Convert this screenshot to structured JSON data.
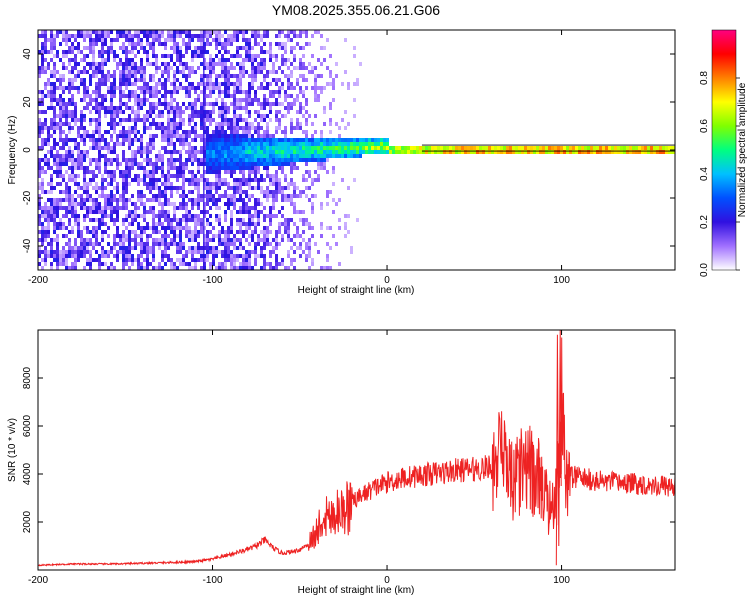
{
  "figure": {
    "title": "YM08.2025.355.06.21.G06"
  },
  "chart_data": [
    {
      "type": "heatmap",
      "title": "YM08.2025.355.06.21.G06",
      "xlabel": "Height of straight line (km)",
      "ylabel": "Frequency (Hz)",
      "xlim": [
        -200,
        165
      ],
      "ylim": [
        -50,
        50
      ],
      "x_ticks": [
        -200,
        -100,
        0,
        100
      ],
      "y_ticks": [
        -40,
        -20,
        0,
        20,
        40
      ],
      "colorbar": {
        "label": "Normalized spectral amplitude",
        "range": [
          0,
          1
        ],
        "ticks": [
          0.0,
          0.2,
          0.4,
          0.6,
          0.8
        ],
        "colormap": [
          "#ffffff",
          "#a070ff",
          "#3010e0",
          "#0050ff",
          "#00c0ff",
          "#00ff80",
          "#80ff00",
          "#ffff00",
          "#ff8000",
          "#ff0000",
          "#ff0080"
        ]
      },
      "line_centre_hz": 0.8,
      "line_amplitude_profile": [
        {
          "x": -105,
          "amp": 0.35
        },
        {
          "x": -80,
          "amp": 0.45
        },
        {
          "x": -55,
          "amp": 0.5
        },
        {
          "x": -30,
          "amp": 0.55
        },
        {
          "x": -10,
          "amp": 0.65
        },
        {
          "x": 0,
          "amp": 0.75
        },
        {
          "x": 20,
          "amp": 0.9
        },
        {
          "x": 60,
          "amp": 0.95
        },
        {
          "x": 100,
          "amp": 0.95
        },
        {
          "x": 165,
          "amp": 0.97
        }
      ],
      "noise_extent_km": [
        -200,
        -75
      ]
    },
    {
      "type": "line",
      "xlabel": "Height of straight line (km)",
      "ylabel": "SNR (10 * v/v)",
      "xlim": [
        -200,
        165
      ],
      "ylim": [
        0,
        10000
      ],
      "x_ticks": [
        -200,
        -100,
        0,
        100
      ],
      "y_ticks": [
        2000,
        4000,
        6000,
        8000
      ],
      "color": "#ee2222",
      "x": [
        -200,
        -180,
        -160,
        -140,
        -120,
        -110,
        -100,
        -95,
        -90,
        -85,
        -80,
        -75,
        -70,
        -65,
        -60,
        -55,
        -50,
        -45,
        -40,
        -35,
        -30,
        -25,
        -20,
        -15,
        -10,
        -5,
        0,
        10,
        20,
        30,
        40,
        50,
        60,
        65,
        70,
        75,
        80,
        85,
        90,
        95,
        98,
        100,
        103,
        105,
        110,
        120,
        130,
        140,
        150,
        160,
        165
      ],
      "y": [
        200,
        250,
        250,
        280,
        320,
        350,
        450,
        550,
        650,
        750,
        850,
        1000,
        1250,
        900,
        700,
        750,
        850,
        1100,
        1600,
        2400,
        2200,
        2500,
        2800,
        3100,
        3300,
        3500,
        3650,
        3850,
        3950,
        4050,
        4150,
        4200,
        4300,
        4500,
        4200,
        4000,
        3900,
        3900,
        3500,
        2500,
        4000,
        6500,
        3800,
        3900,
        3850,
        3700,
        3650,
        3600,
        3550,
        3500,
        3450
      ]
    }
  ]
}
